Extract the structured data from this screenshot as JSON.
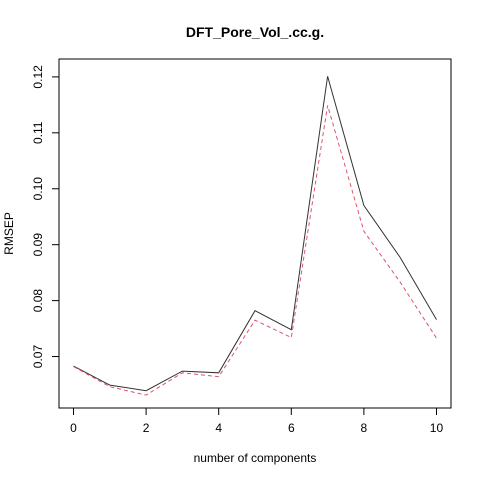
{
  "chart_data": {
    "type": "line",
    "title": "DFT_Pore_Vol_.cc.g.",
    "xlabel": "number of components",
    "ylabel": "RMSEP",
    "xlim": [
      -0.4,
      10.4
    ],
    "ylim": [
      0.0608,
      0.1232
    ],
    "x_ticks": [
      "0",
      "2",
      "4",
      "6",
      "8",
      "10"
    ],
    "y_ticks": [
      "0.07",
      "0.08",
      "0.09",
      "0.10",
      "0.11",
      "0.12"
    ],
    "x": [
      0,
      1,
      2,
      3,
      4,
      5,
      6,
      7,
      8,
      9,
      10
    ],
    "series": [
      {
        "values": [
          0.0683,
          0.0649,
          0.0639,
          0.0674,
          0.0671,
          0.0782,
          0.0748,
          0.1201,
          0.097,
          0.0877,
          0.0766
        ],
        "color": "#333333",
        "style": "solid"
      },
      {
        "values": [
          0.0682,
          0.0646,
          0.0631,
          0.0671,
          0.0664,
          0.0765,
          0.0734,
          0.1149,
          0.0924,
          0.0833,
          0.0733
        ],
        "color": "#DF536B",
        "style": "dashed"
      }
    ],
    "grid": false,
    "legend": "none"
  }
}
